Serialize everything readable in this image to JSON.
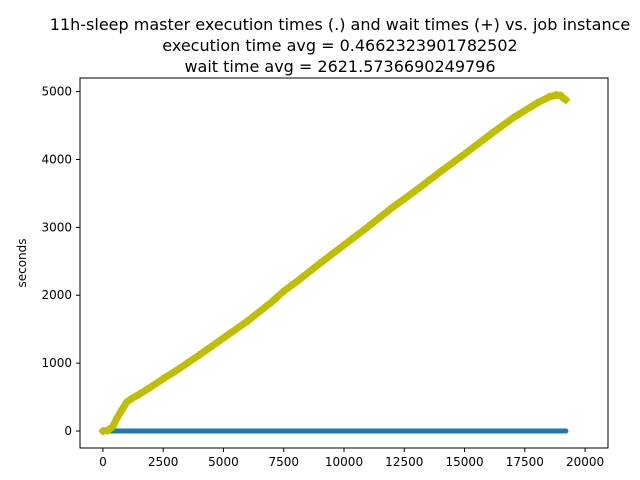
{
  "chart_data": {
    "type": "scatter",
    "title": [
      "11h-sleep master execution times (.) and wait times (+) vs. job instance",
      "execution time avg = 0.4662323901782502",
      "wait time avg = 2621.5736690249796"
    ],
    "xlabel": "",
    "ylabel": "seconds",
    "xlim": [
      -950,
      20950
    ],
    "ylim": [
      -250,
      5200
    ],
    "xticks": [
      0,
      2500,
      5000,
      7500,
      10000,
      12500,
      15000,
      17500,
      20000
    ],
    "yticks": [
      0,
      1000,
      2000,
      3000,
      4000,
      5000
    ],
    "grid": false,
    "series": [
      {
        "marker": ".",
        "color": "#1f77b4",
        "x": [
          0,
          1000,
          2000,
          3000,
          4000,
          5000,
          6000,
          7000,
          8000,
          9000,
          10000,
          11000,
          12000,
          13000,
          14000,
          15000,
          16000,
          17000,
          18000,
          19000,
          19200
        ],
        "y": [
          0,
          0,
          0,
          0,
          0,
          0,
          0,
          0,
          0,
          0,
          0,
          0,
          0,
          0,
          0,
          0,
          0,
          0,
          0,
          0,
          0
        ]
      },
      {
        "marker": "+",
        "color": "#bfbf00",
        "x": [
          0,
          200,
          400,
          600,
          800,
          1000,
          1200,
          1500,
          2000,
          2500,
          3000,
          4000,
          5000,
          6000,
          7000,
          7500,
          8000,
          9000,
          10000,
          11000,
          12000,
          13000,
          14000,
          15000,
          16000,
          17000,
          18000,
          18500,
          18800,
          19000,
          19100,
          19200
        ],
        "y": [
          0,
          10,
          60,
          200,
          320,
          430,
          480,
          540,
          650,
          770,
          880,
          1120,
          1370,
          1620,
          1900,
          2060,
          2190,
          2470,
          2740,
          3010,
          3290,
          3550,
          3820,
          4080,
          4350,
          4610,
          4830,
          4920,
          4950,
          4940,
          4900,
          4880
        ]
      }
    ]
  }
}
